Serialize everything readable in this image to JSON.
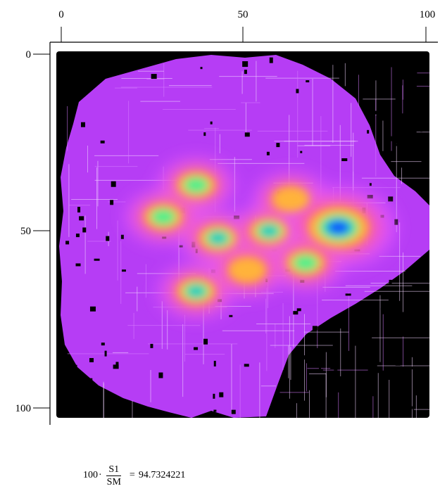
{
  "chart_data": {
    "type": "heatmap",
    "title": "",
    "xlabel": "",
    "ylabel": "",
    "x_ticks": [
      "0",
      "50",
      "100"
    ],
    "y_ticks": [
      "0",
      "50",
      "100"
    ],
    "xlim": [
      0,
      100
    ],
    "ylim": [
      0,
      100
    ],
    "y_axis_direction": "down",
    "x_axis_position": "top",
    "colormap": [
      "#000000",
      "#9a14ea",
      "#e35bff",
      "#ff4f93",
      "#ff8d2e",
      "#ffb33a",
      "#52ee8a",
      "#18c9c1",
      "#1050ff"
    ],
    "hotspots": [
      {
        "x": 37,
        "y": 37,
        "level": "green"
      },
      {
        "x": 28,
        "y": 46,
        "level": "green"
      },
      {
        "x": 43,
        "y": 52,
        "level": "cyan"
      },
      {
        "x": 57,
        "y": 50,
        "level": "cyan"
      },
      {
        "x": 63,
        "y": 41,
        "level": "yellow"
      },
      {
        "x": 76,
        "y": 49,
        "level": "blue"
      },
      {
        "x": 67,
        "y": 59,
        "level": "green"
      },
      {
        "x": 37,
        "y": 67,
        "level": "cyan"
      },
      {
        "x": 51,
        "y": 61,
        "level": "orange"
      }
    ]
  },
  "formula": {
    "coefficient": "100",
    "operator": "·",
    "numerator": "S1",
    "denominator": "SM",
    "equals": "=",
    "result": "94.7324221"
  }
}
